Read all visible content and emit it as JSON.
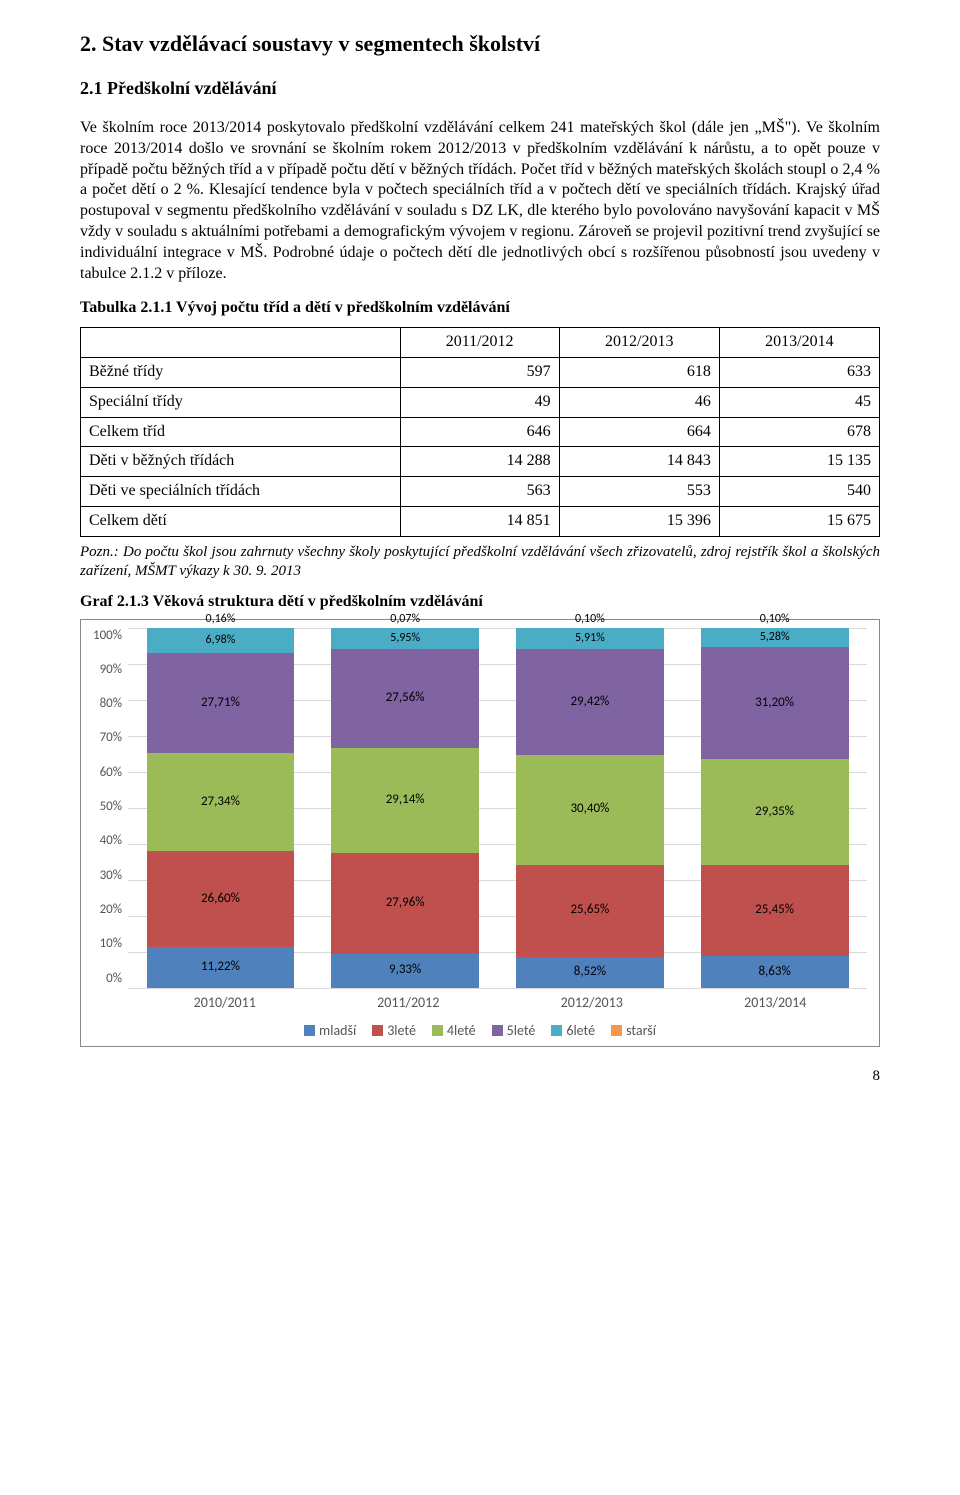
{
  "title": "2. Stav vzdělávací soustavy v segmentech školství",
  "subtitle": "2.1 Předškolní vzdělávání",
  "para1": "Ve školním roce 2013/2014 poskytovalo předškolní vzdělávání celkem 241 mateřských škol (dále jen „MŠ\"). Ve školním roce 2013/2014 došlo ve srovnání se školním rokem 2012/2013 v předškolním vzdělávání k nárůstu, a to opět pouze v případě počtu běžných tříd a v případě počtu dětí v běžných třídách. Počet tříd v běžných mateřských školách stoupl o 2,4 % a počet dětí o 2 %. Klesající tendence byla v počtech speciálních tříd a v počtech dětí ve speciálních třídách. Krajský úřad postupoval v segmentu předškolního vzdělávání v souladu s DZ LK, dle kterého bylo povolováno navyšování kapacit v MŠ vždy v souladu s aktuálními potřebami a demografickým vývojem v regionu. Zároveň se projevil pozitivní trend zvyšující se individuální integrace v MŠ. Podrobné údaje o počtech dětí dle jednotlivých obcí s rozšířenou působností jsou uvedeny v tabulce 2.1.2 v příloze.",
  "table": {
    "caption": "Tabulka 2.1.1 Vývoj počtu tříd a dětí v předškolním vzdělávání",
    "headers": [
      "",
      "2011/2012",
      "2012/2013",
      "2013/2014"
    ],
    "rows": [
      [
        "Běžné třídy",
        "597",
        "618",
        "633"
      ],
      [
        "Speciální třídy",
        "49",
        "46",
        "45"
      ],
      [
        "Celkem tříd",
        "646",
        "664",
        "678"
      ],
      [
        "Děti v běžných třídách",
        "14 288",
        "14 843",
        "15 135"
      ],
      [
        "Děti ve speciálních třídách",
        "563",
        "553",
        "540"
      ],
      [
        "Celkem dětí",
        "14 851",
        "15 396",
        "15 675"
      ]
    ]
  },
  "footnote": "Pozn.: Do počtu škol jsou zahrnuty všechny školy poskytující předškolní vzdělávání všech zřizovatelů, zdroj rejstřík škol a školských zařízení, MŠMT výkazy k 30. 9. 2013",
  "chart": {
    "caption": "Graf 2.1.3 Věková struktura dětí v předškolním vzdělávání",
    "type": "stacked-bar-100",
    "background_color": "#ffffff",
    "grid_color": "#d9d9d9",
    "y_ticks": [
      "100%",
      "90%",
      "80%",
      "70%",
      "60%",
      "50%",
      "40%",
      "30%",
      "20%",
      "10%",
      "0%"
    ],
    "categories": [
      "2010/2011",
      "2011/2012",
      "2012/2013",
      "2013/2014"
    ],
    "series_order": [
      "mladsi",
      "3lete",
      "4lete",
      "5lete",
      "6lete",
      "starsi"
    ],
    "series": {
      "mladsi": {
        "label": "mladší",
        "color": "#4f81bd"
      },
      "3lete": {
        "label": "3leté",
        "color": "#c0504d"
      },
      "4lete": {
        "label": "4leté",
        "color": "#9bbb59"
      },
      "5lete": {
        "label": "5leté",
        "color": "#8064a2"
      },
      "6lete": {
        "label": "6leté",
        "color": "#4bacc6"
      },
      "starsi": {
        "label": "starší",
        "color": "#f79646"
      }
    },
    "columns": [
      {
        "cat": "2010/2011",
        "values": {
          "mladsi": 11.22,
          "3lete": 26.6,
          "4lete": 27.34,
          "5lete": 27.71,
          "6lete": 6.98,
          "starsi": 0.16
        },
        "labels": {
          "mladsi": "11,22%",
          "3lete": "26,60%",
          "4lete": "27,34%",
          "5lete": "27,71%",
          "6lete": "6,98%",
          "starsi": "0,16%"
        }
      },
      {
        "cat": "2011/2012",
        "values": {
          "mladsi": 9.33,
          "3lete": 27.96,
          "4lete": 29.14,
          "5lete": 27.56,
          "6lete": 5.95,
          "starsi": 0.07
        },
        "labels": {
          "mladsi": "9,33%",
          "3lete": "27,96%",
          "4lete": "29,14%",
          "5lete": "27,56%",
          "6lete": "5,95%",
          "starsi": "0,07%"
        }
      },
      {
        "cat": "2012/2013",
        "values": {
          "mladsi": 8.52,
          "3lete": 25.65,
          "4lete": 30.4,
          "5lete": 29.42,
          "6lete": 5.91,
          "starsi": 0.1
        },
        "labels": {
          "mladsi": "8,52%",
          "3lete": "25,65%",
          "4lete": "30,40%",
          "5lete": "29,42%",
          "6lete": "5,91%",
          "starsi": "0,10%"
        }
      },
      {
        "cat": "2013/2014",
        "values": {
          "mladsi": 8.63,
          "3lete": 25.45,
          "4lete": 29.35,
          "5lete": 31.2,
          "6lete": 5.28,
          "starsi": 0.1
        },
        "labels": {
          "mladsi": "8,63%",
          "3lete": "25,45%",
          "4lete": "29,35%",
          "5lete": "31,20%",
          "6lete": "5,28%",
          "starsi": "0,10%"
        }
      }
    ]
  },
  "page_number": "8"
}
